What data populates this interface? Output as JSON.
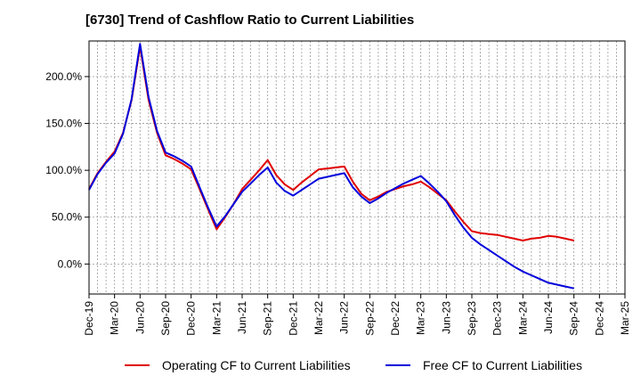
{
  "title": "[6730]  Trend of Cashflow Ratio to Current Liabilities",
  "chart_data": {
    "type": "line",
    "title": "[6730]  Trend of Cashflow Ratio to Current Liabilities",
    "xlabel": "",
    "ylabel": "",
    "x_tick_labels": [
      "Dec-19",
      "Mar-20",
      "Jun-20",
      "Sep-20",
      "Dec-20",
      "Mar-21",
      "Jun-21",
      "Sep-21",
      "Dec-21",
      "Mar-22",
      "Jun-22",
      "Sep-22",
      "Dec-22",
      "Mar-23",
      "Jun-23",
      "Sep-23",
      "Dec-23",
      "Mar-24",
      "Jun-24",
      "Sep-24",
      "Dec-24",
      "Mar-25"
    ],
    "y_tick_labels": [
      "0.0%",
      "50.0%",
      "100.0%",
      "150.0%",
      "200.0%"
    ],
    "y_ticks": [
      0,
      50,
      100,
      150,
      200
    ],
    "xlim": [
      0,
      63
    ],
    "ylim": [
      -32,
      238
    ],
    "grid": true,
    "legend_position": "bottom",
    "x_unit": "months since Dec-19",
    "series": [
      {
        "name": "Operating CF to Current Liabilities",
        "color": "#e00000",
        "x": [
          0,
          1,
          2,
          3,
          4,
          5,
          6,
          7,
          8,
          9,
          10,
          11,
          12,
          13,
          14,
          15,
          16,
          17,
          18,
          19,
          20,
          21,
          22,
          23,
          24,
          25,
          26,
          27,
          28,
          29,
          30,
          31,
          32,
          33,
          34,
          35,
          36,
          37,
          38,
          39,
          40,
          41,
          42,
          43,
          44,
          45,
          46,
          47,
          48,
          49,
          50,
          51,
          52,
          53,
          54,
          55,
          56,
          57
        ],
        "values": [
          80,
          97,
          109,
          120,
          140,
          175,
          232,
          175,
          140,
          116,
          112,
          107,
          101,
          80,
          58,
          37,
          50,
          64,
          80,
          90,
          100,
          111,
          95,
          85,
          79,
          87,
          94,
          101,
          102,
          103,
          104,
          88,
          75,
          68,
          72,
          77,
          80,
          83,
          85,
          88,
          82,
          75,
          68,
          56,
          45,
          35,
          33,
          32,
          31,
          29,
          27,
          25,
          27,
          28,
          30,
          29,
          27,
          25
        ]
      },
      {
        "name": "Free CF to Current Liabilities",
        "color": "#0000dc",
        "x": [
          0,
          1,
          2,
          3,
          4,
          5,
          6,
          7,
          8,
          9,
          10,
          11,
          12,
          13,
          14,
          15,
          16,
          17,
          18,
          19,
          20,
          21,
          22,
          23,
          24,
          25,
          26,
          27,
          28,
          29,
          30,
          31,
          32,
          33,
          34,
          35,
          36,
          37,
          38,
          39,
          40,
          41,
          42,
          43,
          44,
          45,
          46,
          47,
          48,
          49,
          50,
          51,
          52,
          53,
          54,
          55,
          56,
          57
        ],
        "values": [
          79,
          96,
          108,
          118,
          139,
          176,
          235,
          178,
          142,
          119,
          115,
          110,
          104,
          82,
          60,
          40,
          51,
          64,
          77,
          86,
          95,
          103,
          87,
          78,
          73,
          79,
          85,
          91,
          93,
          95,
          97,
          82,
          72,
          65,
          70,
          76,
          81,
          86,
          90,
          94,
          86,
          77,
          67,
          52,
          39,
          28,
          21,
          15,
          9,
          3,
          -3,
          -8,
          -12,
          -16,
          -20,
          -22,
          -24,
          -26
        ]
      }
    ]
  },
  "legend": {
    "items": [
      {
        "label": "Operating CF to Current Liabilities",
        "color": "#e00000"
      },
      {
        "label": "Free CF to Current Liabilities",
        "color": "#0000dc"
      }
    ]
  }
}
